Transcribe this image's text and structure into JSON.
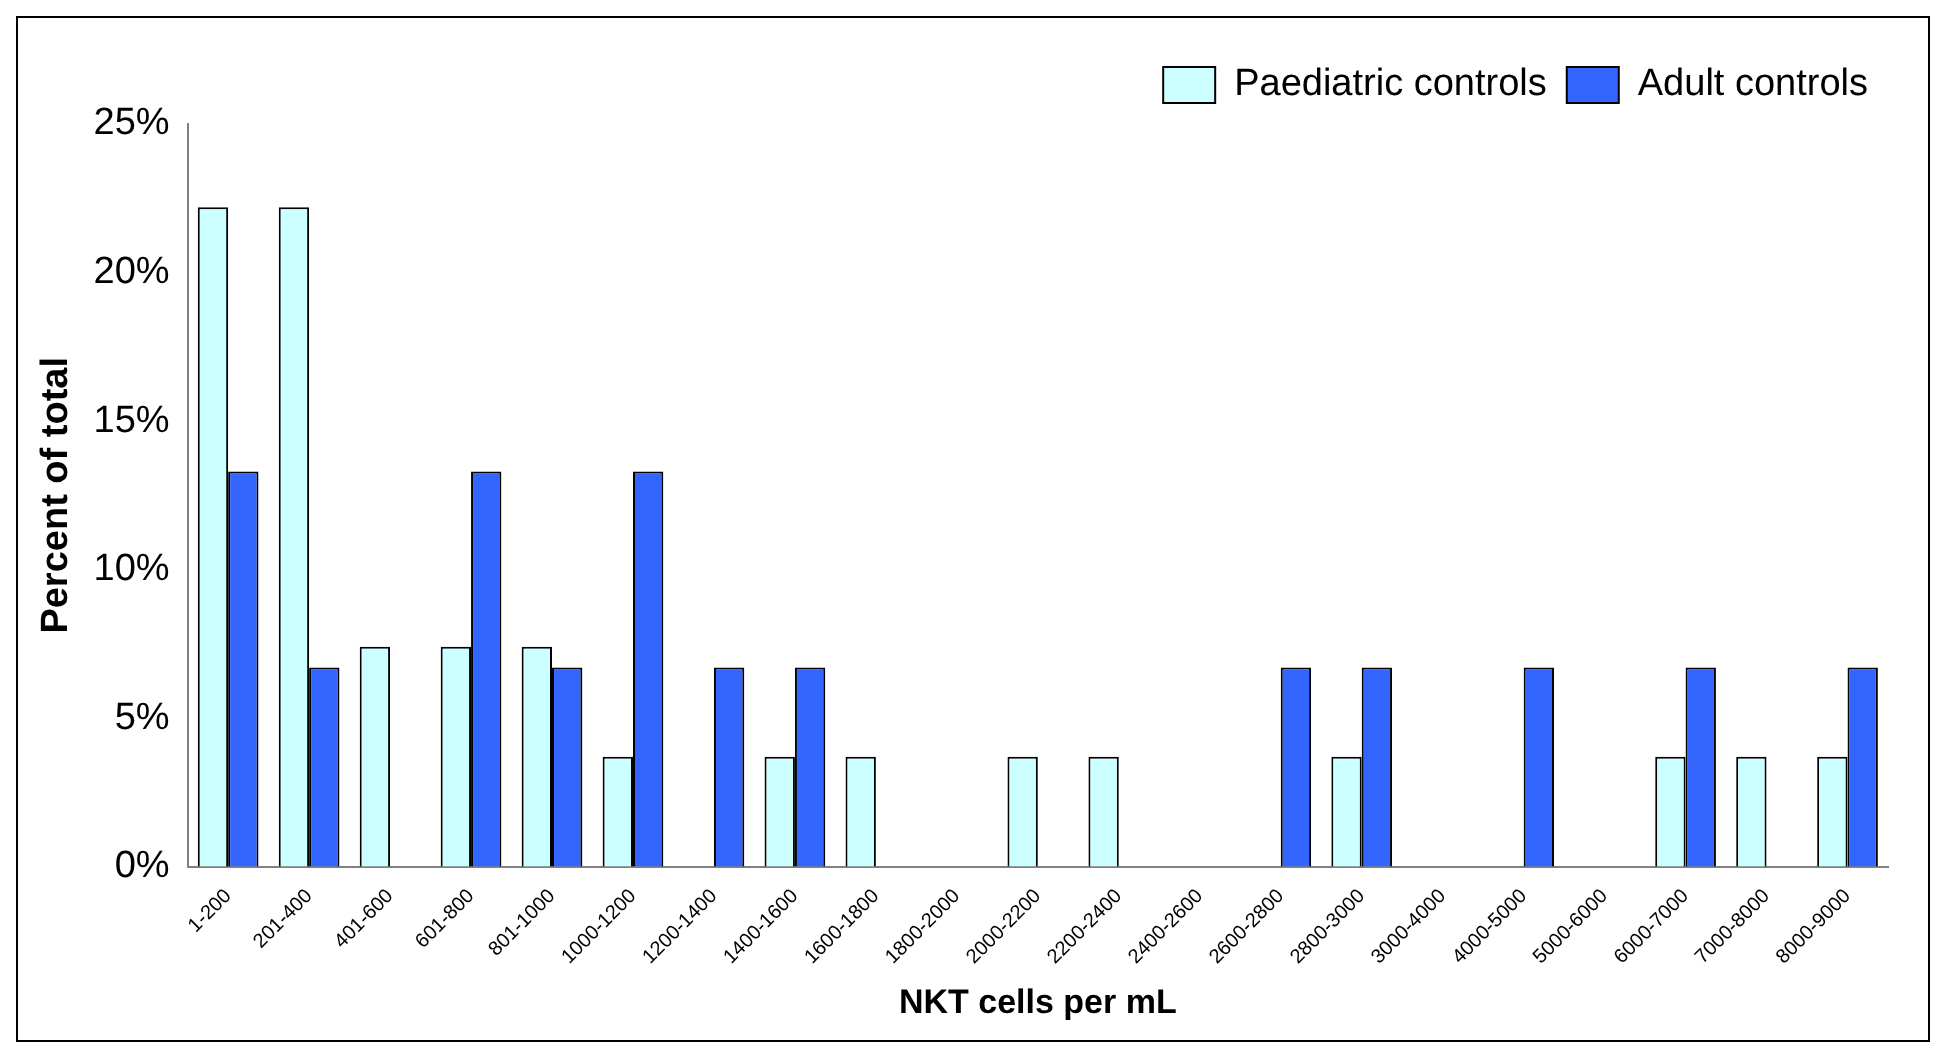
{
  "chart_data": {
    "type": "bar",
    "xlabel": "NKT cells per mL",
    "ylabel": "Percent of total",
    "categories": [
      "1-200",
      "201-400",
      "401-600",
      "601-800",
      "801-1000",
      "1000-1200",
      "1200-1400",
      "1400-1600",
      "1600-1800",
      "1800-2000",
      "2000-2200",
      "2200-2400",
      "2400-2600",
      "2600-2800",
      "2800-3000",
      "3000-4000",
      "4000-5000",
      "5000-6000",
      "6000-7000",
      "7000-8000",
      "8000-9000"
    ],
    "series": [
      {
        "name": "Paediatric controls",
        "color": "#ccffff",
        "values": [
          22.2,
          22.2,
          7.4,
          7.4,
          7.4,
          3.7,
          0,
          3.7,
          3.7,
          0,
          3.7,
          3.7,
          0,
          0,
          3.7,
          0,
          0,
          0,
          3.7,
          3.7,
          3.7
        ]
      },
      {
        "name": "Adult controls",
        "color": "#3366ff",
        "values": [
          13.3,
          6.7,
          0,
          13.3,
          6.7,
          13.3,
          6.7,
          6.7,
          0,
          0,
          0,
          0,
          0,
          6.7,
          6.7,
          0,
          6.7,
          0,
          6.7,
          0,
          6.7
        ]
      }
    ],
    "ylim": [
      0,
      25
    ],
    "yticks": [
      {
        "value": 0,
        "label": "0%"
      },
      {
        "value": 5,
        "label": "5%"
      },
      {
        "value": 10,
        "label": "10%"
      },
      {
        "value": 15,
        "label": "15%"
      },
      {
        "value": 20,
        "label": "20%"
      },
      {
        "value": 25,
        "label": "25%"
      }
    ],
    "grid": false,
    "legend": "top right"
  }
}
